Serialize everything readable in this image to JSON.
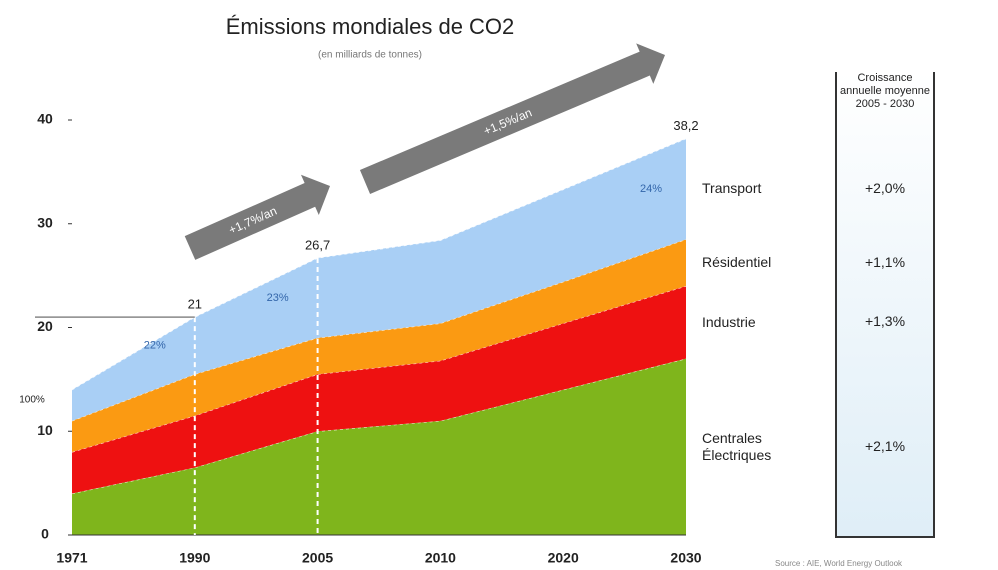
{
  "chart_data": {
    "type": "stacked_area",
    "title": "Émissions mondiales de CO2",
    "subtitle": "(en milliards de tonnes)",
    "categories": [
      "1971",
      "1990",
      "2005",
      "2010",
      "2020",
      "2030"
    ],
    "series": [
      {
        "name": "Centrales Électriques",
        "color": "#7fb51c",
        "values": [
          4,
          6.5,
          10,
          11,
          14,
          17
        ]
      },
      {
        "name": "Industrie",
        "color": "#ee1111",
        "values": [
          4,
          5,
          5.5,
          5.8,
          6.4,
          7
        ]
      },
      {
        "name": "Résidentiel",
        "color": "#fb9a12",
        "values": [
          3,
          4,
          3.5,
          3.6,
          4,
          4.5
        ]
      },
      {
        "name": "Transport",
        "color": "#a9cff5",
        "values": [
          3,
          5.5,
          7.7,
          8,
          8.9,
          9.7
        ]
      }
    ],
    "ylim": [
      0,
      40
    ],
    "yticks": [
      0,
      10,
      20,
      30,
      40
    ],
    "total_labels": [
      {
        "text": "21",
        "category": "1990"
      },
      {
        "text": "26,7",
        "category": "2005"
      },
      {
        "text": "38,2",
        "category": "2030"
      }
    ],
    "share_labels": [
      {
        "text": "22%",
        "category": "1990"
      },
      {
        "text": "23%",
        "category": "2005"
      },
      {
        "text": "24%",
        "category": "2030"
      }
    ],
    "base_label": "100%",
    "arrows": [
      "+1,7%/an",
      "+1,5%/an"
    ],
    "growth_header": "Croissance annuelle moyenne 2005 - 2030",
    "growth_rates": [
      "+2,1%",
      "+1,3%",
      "+1,1%",
      "+2,0%"
    ],
    "source": "Source : AIE, World Energy Outlook"
  }
}
